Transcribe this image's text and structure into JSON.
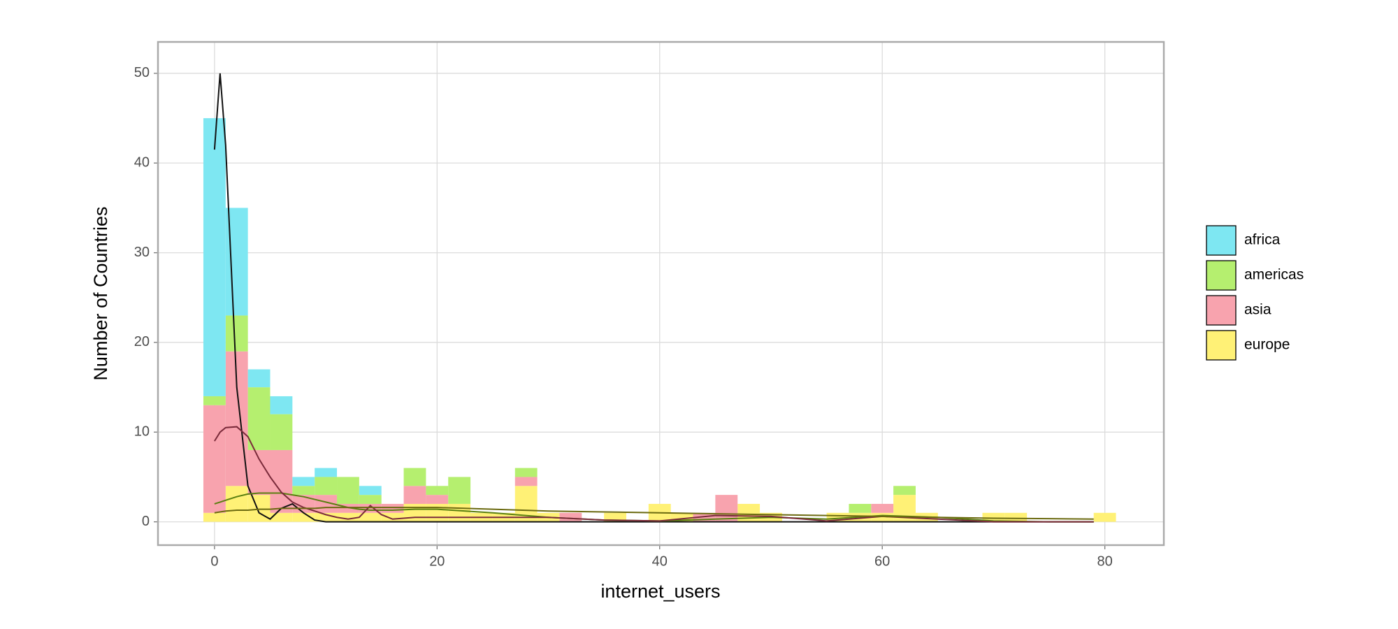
{
  "chart_data": {
    "type": "histogram",
    "x_label": "internet_users",
    "y_label": "Number of Countries",
    "bins": [
      -1,
      1,
      3,
      5,
      7,
      9,
      11,
      13,
      15,
      17,
      19,
      21,
      23,
      25,
      27,
      29,
      31,
      33,
      35,
      37,
      39,
      41,
      43,
      45,
      47,
      49,
      51,
      53,
      55,
      57,
      59,
      61,
      63,
      65,
      67,
      69,
      71,
      73,
      75,
      77,
      79,
      81
    ],
    "series": [
      {
        "name": "africa",
        "color": "#7ee7f2",
        "line_color": "#111111",
        "values": [
          31,
          12,
          2,
          2,
          1,
          1,
          0,
          1,
          0,
          0,
          0,
          0,
          0,
          0,
          0,
          0,
          0,
          0,
          0,
          0,
          0,
          0,
          0,
          0,
          0,
          0,
          0,
          0,
          0,
          0,
          0,
          0,
          0,
          0,
          0,
          0,
          0,
          0,
          0,
          0,
          0
        ],
        "kde": [
          41.5,
          50,
          42,
          15,
          4,
          1,
          0.3,
          1.5,
          2,
          1,
          0.2,
          0,
          0,
          0,
          0,
          0,
          0,
          0,
          0,
          0,
          0,
          0,
          0,
          0,
          0,
          0,
          0,
          0,
          0,
          0,
          0,
          0
        ]
      },
      {
        "name": "americas",
        "color": "#b5ef6f",
        "line_color": "#5a7f10",
        "values": [
          1,
          4,
          7,
          4,
          1,
          2,
          3,
          1,
          0,
          2,
          1,
          3,
          0,
          0,
          1,
          0,
          0,
          0,
          0,
          0,
          0,
          0,
          0,
          0,
          0,
          0,
          0,
          0,
          0,
          1,
          0,
          1,
          0,
          0,
          0,
          0,
          0,
          0,
          0,
          0,
          0
        ],
        "kde": [
          2,
          2.2,
          2.4,
          2.8,
          3.1,
          3.2,
          3.2,
          3.2,
          3,
          2.8,
          2.5,
          2.2,
          1.9,
          1.6,
          1.4,
          1.3,
          1.3,
          1.3,
          1.4,
          1.4,
          1,
          0.5,
          0.2,
          0.1,
          0.3,
          0.5,
          0.3,
          0.7,
          0.5,
          0.1,
          0,
          0
        ]
      },
      {
        "name": "asia",
        "color": "#f8a3ae",
        "line_color": "#7a2a3a",
        "values": [
          12,
          15,
          5,
          7,
          2,
          2,
          1,
          1,
          1,
          2,
          1,
          0,
          0,
          0,
          1,
          0,
          1,
          0,
          0,
          0,
          0,
          0,
          1,
          3,
          0,
          0,
          0,
          0,
          0,
          0,
          1,
          0,
          0,
          0,
          0,
          0,
          0,
          0,
          0,
          0,
          0
        ],
        "kde": [
          9,
          10,
          10.5,
          10.6,
          9.5,
          7,
          5,
          3.3,
          2.2,
          1.6,
          1.2,
          0.8,
          0.5,
          0.3,
          0.5,
          1.8,
          0.8,
          0.3,
          0.5,
          0.5,
          0.5,
          0.5,
          0.2,
          0.1,
          0.7,
          0.6,
          0.1,
          0.6,
          0.3,
          0,
          0,
          0
        ]
      },
      {
        "name": "europe",
        "color": "#fff176",
        "line_color": "#6b6a10",
        "values": [
          1,
          4,
          3,
          1,
          1,
          1,
          1,
          1,
          1,
          2,
          2,
          2,
          1,
          1,
          4,
          1,
          0,
          0,
          1,
          0,
          2,
          1,
          0,
          0,
          2,
          1,
          0,
          0,
          1,
          1,
          1,
          3,
          1,
          0,
          0,
          1,
          1,
          0,
          0,
          0,
          1
        ],
        "kde": [
          1,
          1.1,
          1.2,
          1.3,
          1.3,
          1.4,
          1.4,
          1.5,
          1.5,
          1.5,
          1.5,
          1.6,
          1.6,
          1.6,
          1.6,
          1.6,
          1.6,
          1.6,
          1.6,
          1.6,
          1.4,
          1.2,
          1.1,
          1,
          0.9,
          0.8,
          0.7,
          0.6,
          0.5,
          0.4,
          0.35,
          0.3
        ]
      }
    ],
    "kde_x": [
      0,
      0.5,
      1,
      2,
      3,
      4,
      5,
      6,
      7,
      8,
      9,
      10,
      11,
      12,
      13,
      14,
      15,
      16,
      18,
      20,
      25,
      30,
      35,
      40,
      45,
      50,
      55,
      60,
      65,
      70,
      75,
      79
    ],
    "xlim": [
      -5.08,
      85.3
    ],
    "ylim": [
      -2.6,
      53.5
    ],
    "xticks": [
      0,
      20,
      40,
      60,
      80
    ],
    "yticks": [
      0,
      10,
      20,
      30,
      40,
      50
    ],
    "grid": true,
    "legend": "right"
  }
}
